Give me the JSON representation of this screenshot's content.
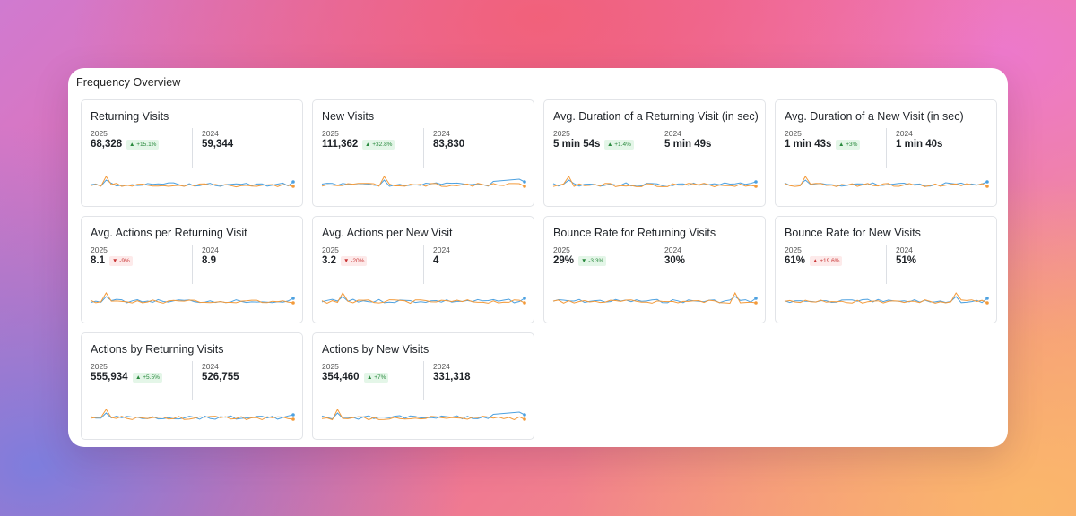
{
  "panel": {
    "title": "Frequency Overview"
  },
  "colors": {
    "series_2025": "#4da1e0",
    "series_2024": "#f39a3a",
    "up": "#2a8a3e",
    "down": "#c93636"
  },
  "cards": [
    {
      "title": "Returning Visits",
      "year_current": "2025",
      "value_current": "68,328",
      "change": "▲ +15.1%",
      "direction": "up",
      "year_previous": "2024",
      "value_previous": "59,344"
    },
    {
      "title": "New Visits",
      "year_current": "2025",
      "value_current": "111,362",
      "change": "▲ +32.8%",
      "direction": "up",
      "year_previous": "2024",
      "value_previous": "83,830"
    },
    {
      "title": "Avg. Duration of a Returning Visit (in sec)",
      "year_current": "2025",
      "value_current": "5 min 54s",
      "change": "▲ +1.4%",
      "direction": "up",
      "year_previous": "2024",
      "value_previous": "5 min 49s"
    },
    {
      "title": "Avg. Duration of a New Visit (in sec)",
      "year_current": "2025",
      "value_current": "1 min 43s",
      "change": "▲ +3%",
      "direction": "up",
      "year_previous": "2024",
      "value_previous": "1 min 40s"
    },
    {
      "title": "Avg. Actions per Returning Visit",
      "year_current": "2025",
      "value_current": "8.1",
      "change": "▼ -9%",
      "direction": "down",
      "year_previous": "2024",
      "value_previous": "8.9"
    },
    {
      "title": "Avg. Actions per New Visit",
      "year_current": "2025",
      "value_current": "3.2",
      "change": "▼ -20%",
      "direction": "down",
      "year_previous": "2024",
      "value_previous": "4"
    },
    {
      "title": "Bounce Rate for Returning Visits",
      "year_current": "2025",
      "value_current": "29%",
      "change": "▼ -3.3%",
      "direction": "up",
      "year_previous": "2024",
      "value_previous": "30%"
    },
    {
      "title": "Bounce Rate for New Visits",
      "year_current": "2025",
      "value_current": "61%",
      "change": "▲ +19.6%",
      "direction": "down",
      "year_previous": "2024",
      "value_previous": "51%"
    },
    {
      "title": "Actions by Returning Visits",
      "year_current": "2025",
      "value_current": "555,934",
      "change": "▲ +5.5%",
      "direction": "up",
      "year_previous": "2024",
      "value_previous": "526,755"
    },
    {
      "title": "Actions by New Visits",
      "year_current": "2025",
      "value_current": "354,460",
      "change": "▲ +7%",
      "direction": "up",
      "year_previous": "2024",
      "value_previous": "331,318"
    }
  ]
}
